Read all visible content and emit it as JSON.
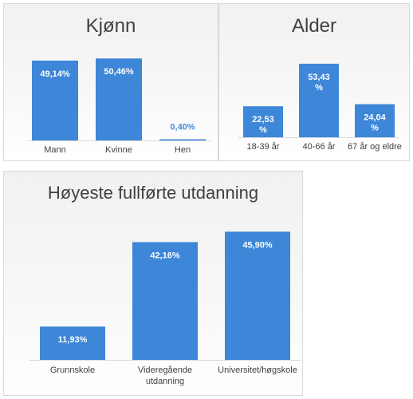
{
  "chart_data": [
    {
      "type": "bar",
      "title": "Kjønn",
      "categories": [
        "Mann",
        "Kvinne",
        "Hen"
      ],
      "values": [
        49.14,
        50.46,
        0.4
      ],
      "value_labels": [
        "49,14%",
        "50,46%",
        "0,40%"
      ],
      "ylim": [
        0,
        55
      ],
      "color": "#3d86d8",
      "label_color_inside": "#ffffff",
      "label_color_outside": "#4a8ed8"
    },
    {
      "type": "bar",
      "title": "Alder",
      "categories": [
        "18-39 år",
        "40-66 år",
        "67 år og eldre"
      ],
      "values": [
        22.53,
        53.43,
        24.04
      ],
      "value_labels": [
        [
          "22,53",
          "%"
        ],
        [
          "53,43",
          "%"
        ],
        [
          "24,04",
          "%"
        ]
      ],
      "ylim": [
        0,
        58
      ],
      "color": "#3d86d8",
      "label_color_inside": "#ffffff"
    },
    {
      "type": "bar",
      "title": "Høyeste fullførte utdanning",
      "categories": [
        "Grunnskole",
        [
          "Videregående",
          "utdanning"
        ],
        "Universitet/høgskole"
      ],
      "values": [
        11.93,
        42.16,
        45.9
      ],
      "value_labels": [
        "11,93%",
        "42,16%",
        "45,90%"
      ],
      "ylim": [
        0,
        50
      ],
      "color": "#3d86d8",
      "label_color_inside": "#ffffff"
    }
  ]
}
